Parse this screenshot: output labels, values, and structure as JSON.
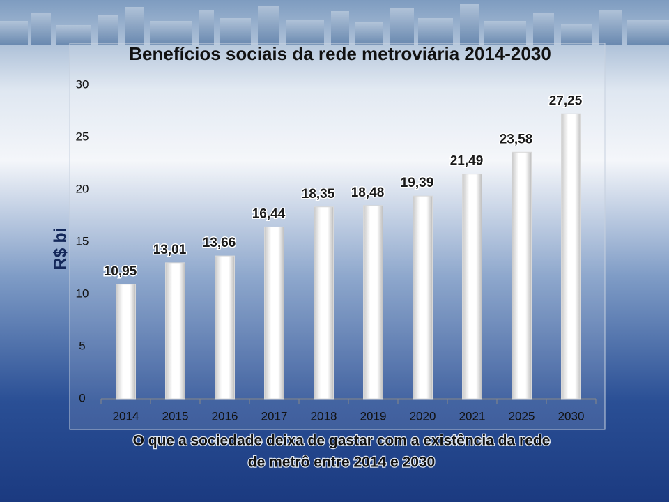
{
  "chart_data": {
    "type": "bar",
    "title": "Benefícios sociais da rede metroviária 2014-2030",
    "y_label": "R$ bi",
    "caption": [
      "O que a sociedade deixa de gastar com a existência da rede",
      "de metrô entre 2014 e 2030"
    ],
    "categories": [
      "2014",
      "2015",
      "2016",
      "2017",
      "2018",
      "2019",
      "2020",
      "2021",
      "2025",
      "2030"
    ],
    "values": [
      10.95,
      13.01,
      13.66,
      16.44,
      18.35,
      18.48,
      19.39,
      21.49,
      23.58,
      27.25
    ],
    "value_labels": [
      "10,95",
      "13,01",
      "13,66",
      "16,44",
      "18,35",
      "18,48",
      "19,39",
      "21,49",
      "23,58",
      "27,25"
    ],
    "color": "#ffffff",
    "ylim": [
      0,
      30
    ],
    "yticks": [
      0,
      5,
      10,
      15,
      20,
      25,
      30
    ],
    "grid": false
  }
}
